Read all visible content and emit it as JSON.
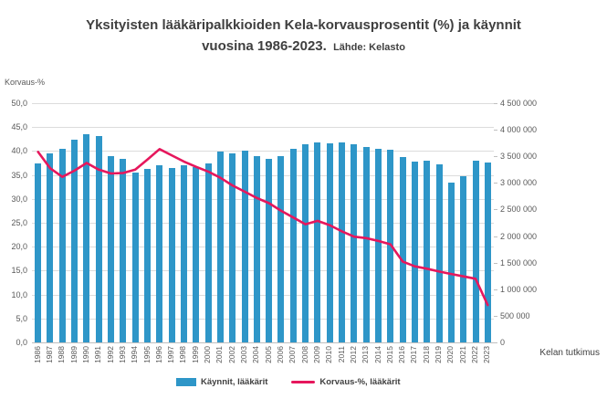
{
  "title": {
    "line1": "Yksityisten lääkäripalkkioiden Kela-korvausprosentit (%) ja käynnit",
    "line2": "vuosina 1986-2023.",
    "source_note": "Lähde: Kelasto"
  },
  "footer": {
    "credit": "Kelan tutkimus"
  },
  "colors": {
    "bar": "#2e96c8",
    "line": "#e6175c",
    "grid": "#dcdcdc",
    "axis_line": "#bfbfbf",
    "axis_text": "#595959",
    "title_text": "#3f3f3f"
  },
  "legend": [
    {
      "label": "Käynnit, lääkärit",
      "type": "bar"
    },
    {
      "label": "Korvaus-%, lääkärit",
      "type": "line"
    }
  ],
  "chart_data": {
    "type": "combo",
    "title": "Yksityisten lääkäripalkkioiden Kela-korvausprosentit (%) ja käynnit vuosina 1986-2023. Lähde: Kelasto",
    "categories": [
      "1986",
      "1987",
      "1988",
      "1989",
      "1990",
      "1991",
      "1992",
      "1993",
      "1994",
      "1995",
      "1996",
      "1997",
      "1998",
      "1999",
      "2000",
      "2001",
      "2002",
      "2003",
      "2004",
      "2005",
      "2006",
      "2007",
      "2008",
      "2009",
      "2010",
      "2011",
      "2012",
      "2013",
      "2014",
      "2015",
      "2016",
      "2017",
      "2018",
      "2019",
      "2020",
      "2021",
      "2022",
      "2023"
    ],
    "series": [
      {
        "name": "Käynnit, lääkärit",
        "type": "bar",
        "axis": "right",
        "values": [
          3360000,
          3560000,
          3650000,
          3810000,
          3910000,
          3880000,
          3500000,
          3460000,
          3190000,
          3260000,
          3330000,
          3280000,
          3340000,
          3290000,
          3360000,
          3590000,
          3550000,
          3600000,
          3510000,
          3460000,
          3510000,
          3650000,
          3730000,
          3770000,
          3740000,
          3770000,
          3720000,
          3670000,
          3650000,
          3630000,
          3490000,
          3400000,
          3410000,
          3350000,
          3000000,
          3130000,
          3410000,
          3380000
        ]
      },
      {
        "name": "Korvaus-%, lääkärit",
        "type": "line",
        "axis": "left",
        "values": [
          39.8,
          36.4,
          34.6,
          35.9,
          37.5,
          36.1,
          35.3,
          35.4,
          36.1,
          38.2,
          40.4,
          39.1,
          37.8,
          36.7,
          35.7,
          34.4,
          32.8,
          31.5,
          30.2,
          29.1,
          27.5,
          26.1,
          24.7,
          25.4,
          24.5,
          23.2,
          22.1,
          21.8,
          21.2,
          20.5,
          16.9,
          15.9,
          15.4,
          14.8,
          14.3,
          13.8,
          13.3,
          7.8
        ]
      }
    ],
    "left_axis": {
      "label": "Korvaus-%",
      "range": [
        0,
        50
      ],
      "step": 5,
      "tick_labels": [
        "0,0",
        "5,0",
        "10,0",
        "15,0",
        "20,0",
        "25,0",
        "30,0",
        "35,0",
        "40,0",
        "45,0",
        "50,0"
      ]
    },
    "right_axis": {
      "range": [
        0,
        4500000
      ],
      "step": 500000,
      "tick_labels": [
        "0",
        "500 000",
        "1 000 000",
        "1 500 000",
        "2 000 000",
        "2 500 000",
        "3 000 000",
        "3 500 000",
        "4 000 000",
        "4 500 000"
      ]
    },
    "grid": true,
    "legend_position": "bottom"
  }
}
